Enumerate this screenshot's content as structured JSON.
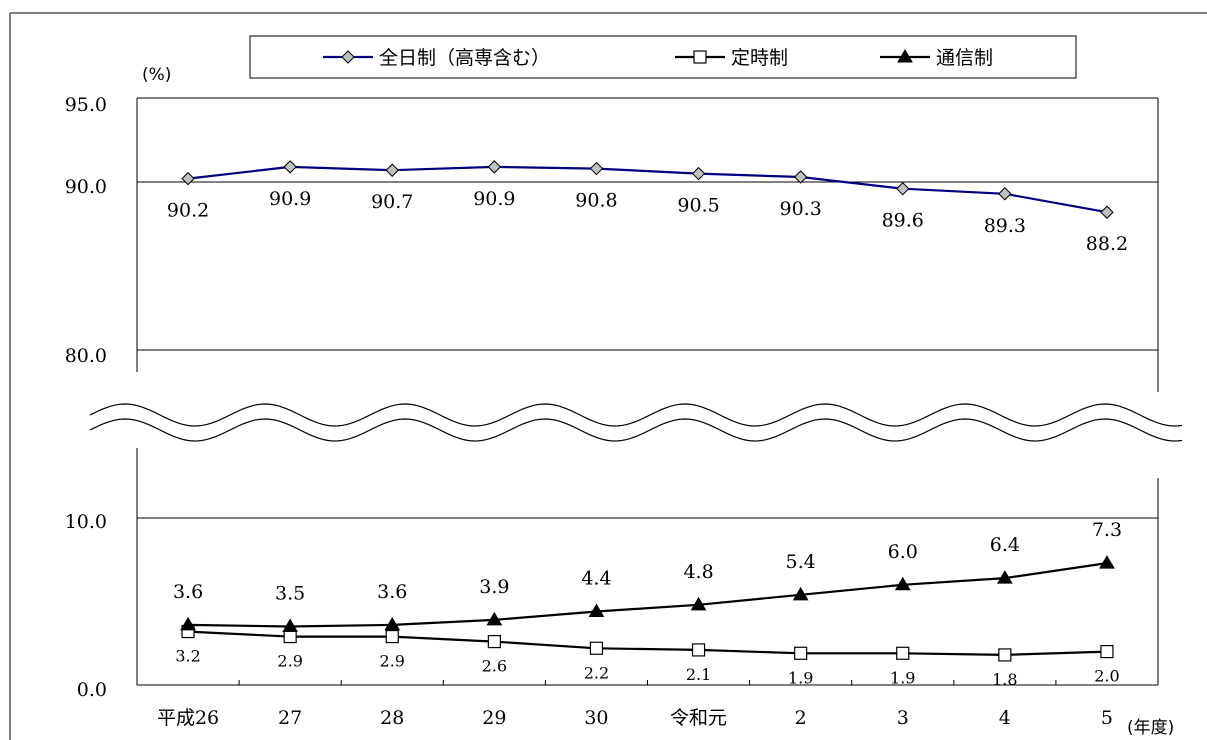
{
  "chart_data": {
    "type": "line",
    "y_unit_label": "(%)",
    "x_unit_label": "(年度)",
    "categories": [
      "平成26",
      "27",
      "28",
      "29",
      "30",
      "令和元",
      "2",
      "3",
      "4",
      "5"
    ],
    "y_ticks": [
      "95.0",
      "90.0",
      "80.0",
      "10.0",
      "0.0"
    ],
    "y_axis_break": true,
    "grid": true,
    "legend_position": "top-center",
    "series": [
      {
        "name": "全日制（高専含む）",
        "marker": "diamond",
        "line_color": "#000080",
        "marker_fill": "#c0c0c0",
        "values": [
          90.2,
          90.9,
          90.7,
          90.9,
          90.8,
          90.5,
          90.3,
          89.6,
          89.3,
          88.2
        ],
        "labels": [
          "90.2",
          "90.9",
          "90.7",
          "90.9",
          "90.8",
          "90.5",
          "90.3",
          "89.6",
          "89.3",
          "88.2"
        ]
      },
      {
        "name": "定時制",
        "marker": "square",
        "line_color": "#000000",
        "marker_fill": "#ffffff",
        "values": [
          3.2,
          2.9,
          2.9,
          2.6,
          2.2,
          2.1,
          1.9,
          1.9,
          1.8,
          2.0
        ],
        "labels": [
          "3.2",
          "2.9",
          "2.9",
          "2.6",
          "2.2",
          "2.1",
          "1.9",
          "1.9",
          "1.8",
          "2.0"
        ]
      },
      {
        "name": "通信制",
        "marker": "triangle",
        "line_color": "#000000",
        "marker_fill": "#000000",
        "values": [
          3.6,
          3.5,
          3.6,
          3.9,
          4.4,
          4.8,
          5.4,
          6.0,
          6.4,
          7.3
        ],
        "labels": [
          "3.6",
          "3.5",
          "3.6",
          "3.9",
          "4.4",
          "4.8",
          "5.4",
          "6.0",
          "6.4",
          "7.3"
        ]
      }
    ]
  }
}
